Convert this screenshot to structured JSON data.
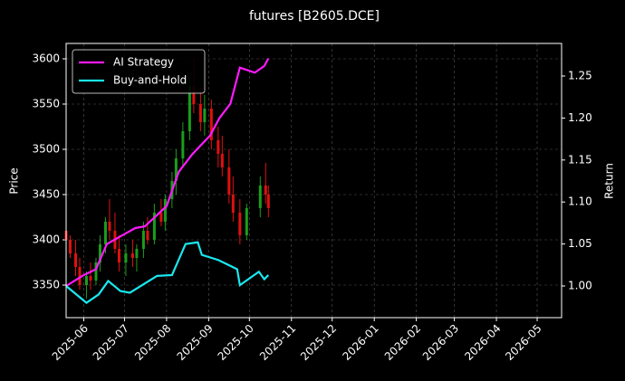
{
  "chart_data": {
    "type": "candlestick",
    "title": "futures [B2605.DCE]",
    "ylabel": "Price",
    "y2label": "Return",
    "x": [
      "2025-05-19",
      "2025-05-22",
      "2025-05-26",
      "2025-05-29",
      "2025-06-03",
      "2025-06-06",
      "2025-06-10",
      "2025-06-13",
      "2025-06-17",
      "2025-06-20",
      "2025-06-24",
      "2025-06-27",
      "2025-07-02",
      "2025-07-07",
      "2025-07-10",
      "2025-07-15",
      "2025-07-18",
      "2025-07-23",
      "2025-07-28",
      "2025-07-31",
      "2025-08-05",
      "2025-08-08",
      "2025-08-13",
      "2025-08-18",
      "2025-08-21",
      "2025-08-26",
      "2025-08-29",
      "2025-09-03",
      "2025-09-08",
      "2025-09-11",
      "2025-09-16",
      "2025-09-19",
      "2025-09-24",
      "2025-09-29",
      "2025-10-09",
      "2025-10-13",
      "2025-10-15"
    ],
    "open": [
      3410,
      3400,
      3385,
      3370,
      3350,
      3360,
      3355,
      3375,
      3395,
      3420,
      3410,
      3390,
      3375,
      3385,
      3380,
      3390,
      3410,
      3400,
      3430,
      3420,
      3445,
      3465,
      3490,
      3520,
      3570,
      3550,
      3530,
      3545,
      3510,
      3495,
      3480,
      3450,
      3430,
      3405,
      3435,
      3460,
      3450
    ],
    "high": [
      3415,
      3405,
      3400,
      3380,
      3365,
      3375,
      3380,
      3405,
      3425,
      3445,
      3430,
      3405,
      3395,
      3400,
      3395,
      3420,
      3425,
      3440,
      3445,
      3450,
      3475,
      3500,
      3530,
      3580,
      3600,
      3570,
      3560,
      3555,
      3525,
      3515,
      3500,
      3470,
      3445,
      3440,
      3470,
      3485,
      3460
    ],
    "low": [
      3395,
      3380,
      3360,
      3345,
      3335,
      3345,
      3350,
      3365,
      3385,
      3400,
      3385,
      3365,
      3360,
      3370,
      3365,
      3380,
      3395,
      3395,
      3415,
      3410,
      3435,
      3450,
      3480,
      3510,
      3540,
      3520,
      3515,
      3500,
      3480,
      3470,
      3440,
      3420,
      3395,
      3400,
      3425,
      3440,
      3425
    ],
    "close": [
      3400,
      3385,
      3370,
      3350,
      3360,
      3355,
      3375,
      3395,
      3420,
      3410,
      3390,
      3375,
      3385,
      3380,
      3390,
      3410,
      3400,
      3430,
      3420,
      3445,
      3465,
      3490,
      3520,
      3570,
      3550,
      3530,
      3545,
      3510,
      3495,
      3480,
      3450,
      3430,
      3405,
      3435,
      3460,
      3450,
      3435
    ],
    "up_color": "#1a9e1a",
    "down_color": "#e01010",
    "series": [
      {
        "name": "AI Strategy",
        "color": "#ff1aff",
        "axis": "y2",
        "x": [
          "2025-05-19",
          "2025-06-01",
          "2025-06-10",
          "2025-06-18",
          "2025-07-09",
          "2025-07-16",
          "2025-08-01",
          "2025-08-10",
          "2025-08-20",
          "2025-09-02",
          "2025-09-09",
          "2025-09-17",
          "2025-09-24",
          "2025-10-05",
          "2025-10-12",
          "2025-10-15"
        ],
        "values": [
          1.0,
          1.013,
          1.02,
          1.05,
          1.069,
          1.071,
          1.095,
          1.136,
          1.157,
          1.179,
          1.2,
          1.217,
          1.26,
          1.254,
          1.262,
          1.271
        ]
      },
      {
        "name": "Buy-and-Hold",
        "color": "#1ae8f0",
        "axis": "y2",
        "x": [
          "2025-05-19",
          "2025-06-03",
          "2025-06-12",
          "2025-06-19",
          "2025-06-28",
          "2025-07-05",
          "2025-07-25",
          "2025-08-05",
          "2025-08-15",
          "2025-08-24",
          "2025-08-27",
          "2025-09-08",
          "2025-09-22",
          "2025-09-24",
          "2025-10-08",
          "2025-10-12",
          "2025-10-15"
        ],
        "values": [
          1.0,
          0.98,
          0.99,
          1.006,
          0.994,
          0.992,
          1.012,
          1.013,
          1.05,
          1.052,
          1.037,
          1.031,
          1.02,
          1.001,
          1.017,
          1.008,
          1.013
        ]
      }
    ],
    "xlim": [
      "2025-05-19",
      "2026-05-19"
    ],
    "xticks": [
      "2025-06",
      "2025-07",
      "2025-08",
      "2025-09",
      "2025-10",
      "2025-11",
      "2025-12",
      "2026-01",
      "2026-02",
      "2026-03",
      "2026-04",
      "2026-05"
    ],
    "ylim": [
      3314,
      3617
    ],
    "yticks": [
      3350,
      3400,
      3450,
      3500,
      3550,
      3600
    ],
    "y2lim": [
      0.9623,
      1.2888
    ],
    "y2ticks": [
      {
        "value": 1.0,
        "label": "1.00"
      },
      1.05,
      {
        "value": 1.1,
        "label": "1.10"
      },
      1.15,
      {
        "value": 1.2,
        "label": "1.20"
      },
      1.25
    ],
    "grid": true,
    "legend": "upper left"
  }
}
